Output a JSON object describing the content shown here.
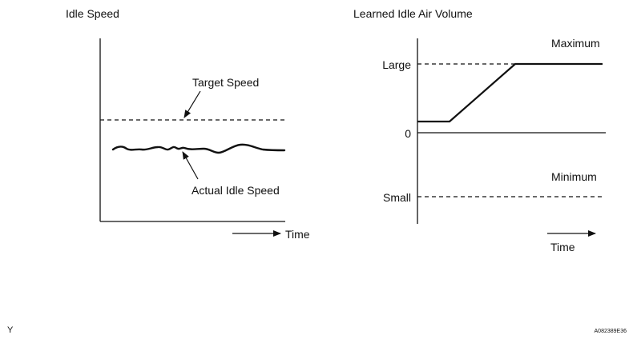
{
  "left_panel": {
    "title": "Idle Speed",
    "target_label": "Target Speed",
    "actual_label": "Actual Idle Speed",
    "time_label": "Time"
  },
  "right_panel": {
    "title": "Learned Idle Air Volume",
    "maximum_label": "Maximum",
    "large_label": "Large",
    "zero_label": "0",
    "minimum_label": "Minimum",
    "small_label": "Small",
    "time_label": "Time"
  },
  "footer": {
    "left_mark": "Y",
    "figure_code": "A082389E36"
  }
}
